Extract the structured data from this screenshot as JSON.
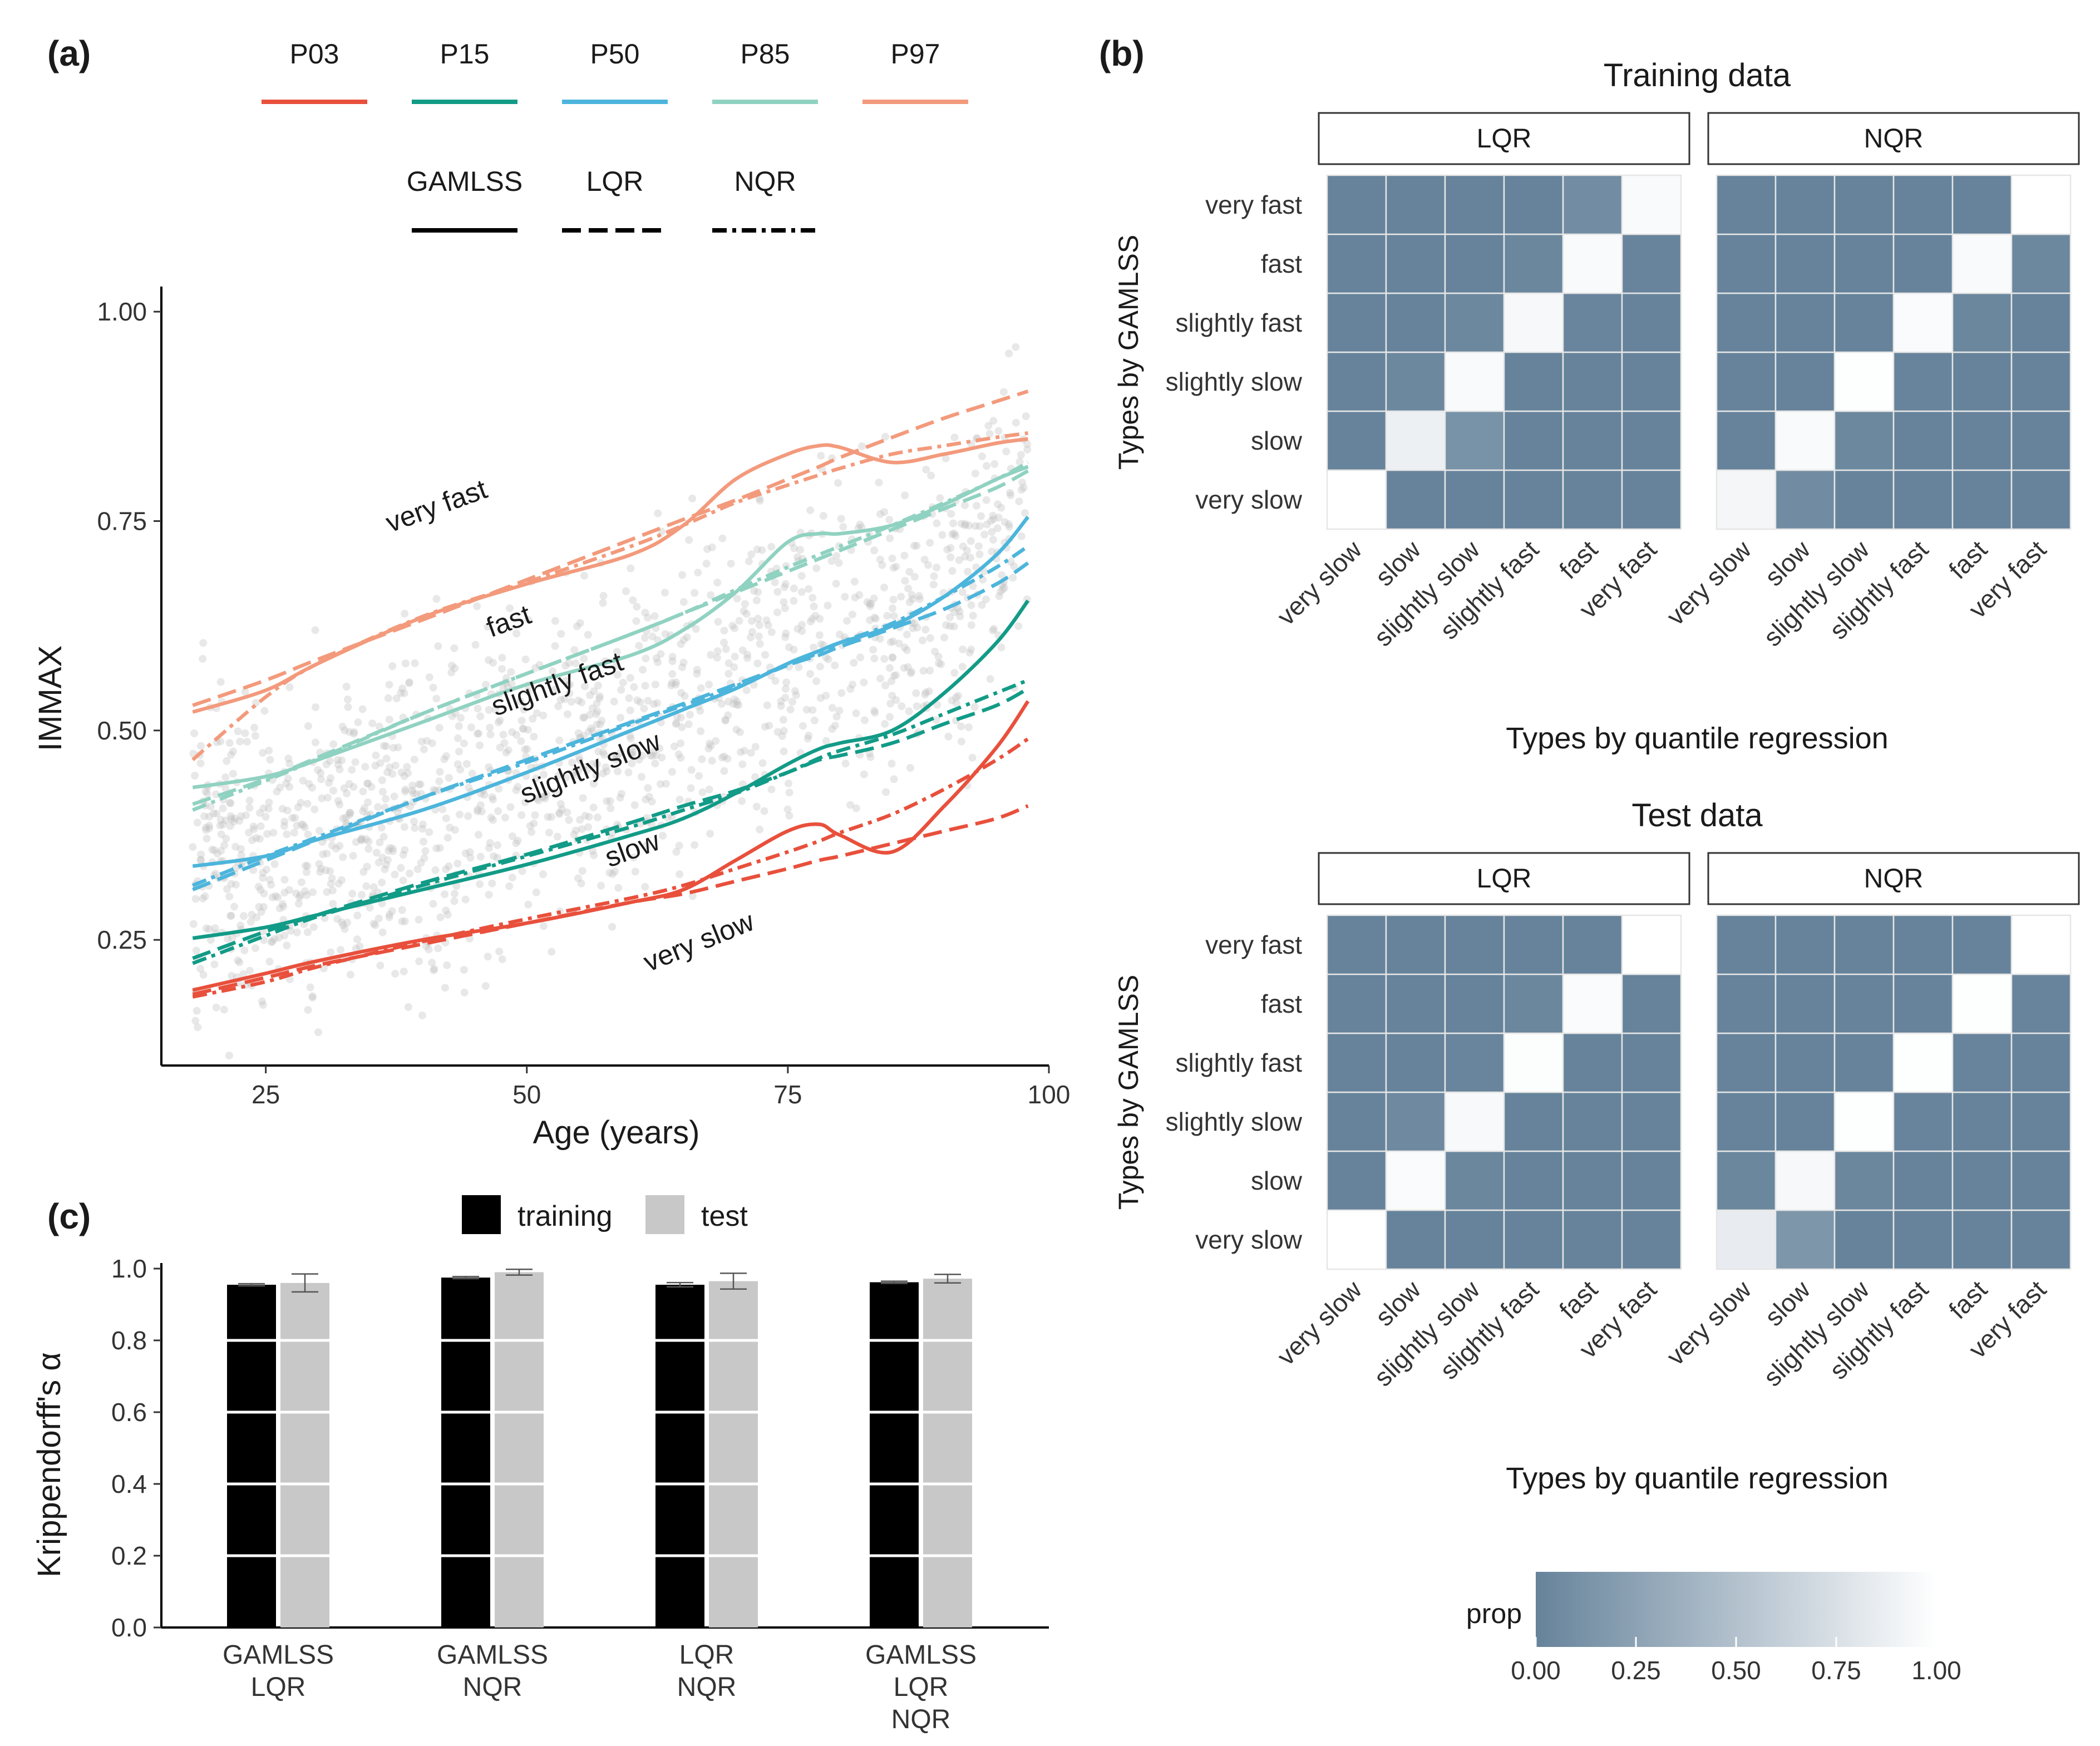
{
  "panel_labels": {
    "a": "(a)",
    "b": "(b)",
    "c": "(c)"
  },
  "colors": {
    "P03": "#e8503c",
    "P15": "#129b87",
    "P50": "#4cb5dc",
    "P85": "#90d2c1",
    "P97": "#f39a7c",
    "heat_low": "#66839b",
    "heat_high": "#ffffff",
    "bar_training": "#000000",
    "bar_test": "#c8c8c8",
    "points": "#bdbdbd"
  },
  "chart_data": [
    {
      "id": "a",
      "type": "line",
      "xlabel": "Age (years)",
      "ylabel": "IMMAX",
      "xlim": [
        15,
        100
      ],
      "ylim": [
        0.1,
        1.03
      ],
      "xticks": [
        25,
        50,
        75,
        100
      ],
      "yticks": [
        0.25,
        0.5,
        0.75,
        1.0
      ],
      "ytick_labels": [
        "0.25",
        "0.50",
        "0.75",
        "1.00"
      ],
      "grid": false,
      "legend": {
        "placement": "top",
        "percentiles": [
          "P03",
          "P15",
          "P50",
          "P85",
          "P97"
        ],
        "methods": [
          "GAMLSS",
          "LQR",
          "NQR"
        ]
      },
      "x": [
        18,
        25,
        30,
        40,
        50,
        60,
        65,
        70,
        75,
        78,
        80,
        85,
        90,
        95,
        98
      ],
      "series": [
        {
          "name": "P03",
          "method": "GAMLSS",
          "values": [
            0.19,
            0.21,
            0.225,
            0.25,
            0.27,
            0.295,
            0.31,
            0.345,
            0.38,
            0.388,
            0.375,
            0.355,
            0.41,
            0.48,
            0.535
          ]
        },
        {
          "name": "P03",
          "method": "LQR",
          "values": [
            0.185,
            0.205,
            0.22,
            0.245,
            0.27,
            0.295,
            0.305,
            0.32,
            0.335,
            0.345,
            0.35,
            0.365,
            0.38,
            0.395,
            0.41
          ]
        },
        {
          "name": "P03",
          "method": "NQR",
          "values": [
            0.182,
            0.2,
            0.218,
            0.248,
            0.275,
            0.3,
            0.315,
            0.335,
            0.355,
            0.368,
            0.378,
            0.4,
            0.43,
            0.465,
            0.49
          ]
        },
        {
          "name": "P15",
          "method": "GAMLSS",
          "values": [
            0.252,
            0.265,
            0.28,
            0.31,
            0.34,
            0.375,
            0.395,
            0.425,
            0.46,
            0.478,
            0.485,
            0.5,
            0.545,
            0.605,
            0.655
          ]
        },
        {
          "name": "P15",
          "method": "LQR",
          "values": [
            0.228,
            0.26,
            0.28,
            0.318,
            0.352,
            0.39,
            0.41,
            0.428,
            0.45,
            0.465,
            0.47,
            0.485,
            0.508,
            0.53,
            0.55
          ]
        },
        {
          "name": "P15",
          "method": "NQR",
          "values": [
            0.222,
            0.255,
            0.278,
            0.315,
            0.35,
            0.385,
            0.405,
            0.425,
            0.45,
            0.467,
            0.476,
            0.495,
            0.52,
            0.545,
            0.56
          ]
        },
        {
          "name": "P50",
          "method": "GAMLSS",
          "values": [
            0.338,
            0.35,
            0.37,
            0.405,
            0.45,
            0.5,
            0.525,
            0.55,
            0.58,
            0.595,
            0.605,
            0.625,
            0.66,
            0.71,
            0.755
          ]
        },
        {
          "name": "P50",
          "method": "LQR",
          "values": [
            0.31,
            0.345,
            0.37,
            0.42,
            0.465,
            0.51,
            0.532,
            0.555,
            0.578,
            0.59,
            0.6,
            0.622,
            0.645,
            0.675,
            0.7
          ]
        },
        {
          "name": "P50",
          "method": "NQR",
          "values": [
            0.315,
            0.35,
            0.373,
            0.42,
            0.462,
            0.508,
            0.53,
            0.553,
            0.578,
            0.593,
            0.605,
            0.628,
            0.66,
            0.695,
            0.72
          ]
        },
        {
          "name": "P85",
          "method": "GAMLSS",
          "values": [
            0.432,
            0.445,
            0.465,
            0.51,
            0.555,
            0.59,
            0.62,
            0.665,
            0.725,
            0.735,
            0.735,
            0.745,
            0.77,
            0.8,
            0.815
          ]
        },
        {
          "name": "P85",
          "method": "LQR",
          "values": [
            0.412,
            0.442,
            0.468,
            0.52,
            0.568,
            0.615,
            0.64,
            0.665,
            0.69,
            0.705,
            0.715,
            0.74,
            0.765,
            0.79,
            0.81
          ]
        },
        {
          "name": "P85",
          "method": "NQR",
          "values": [
            0.405,
            0.44,
            0.466,
            0.52,
            0.568,
            0.615,
            0.64,
            0.668,
            0.695,
            0.71,
            0.72,
            0.745,
            0.772,
            0.8,
            0.82
          ]
        },
        {
          "name": "P97",
          "method": "GAMLSS",
          "values": [
            0.522,
            0.548,
            0.58,
            0.635,
            0.675,
            0.71,
            0.745,
            0.8,
            0.83,
            0.84,
            0.838,
            0.82,
            0.83,
            0.843,
            0.848
          ]
        },
        {
          "name": "P97",
          "method": "LQR",
          "values": [
            0.53,
            0.56,
            0.585,
            0.632,
            0.68,
            0.728,
            0.752,
            0.775,
            0.8,
            0.815,
            0.826,
            0.85,
            0.873,
            0.893,
            0.905
          ]
        },
        {
          "name": "P97",
          "method": "NQR",
          "values": [
            0.465,
            0.54,
            0.58,
            0.636,
            0.677,
            0.72,
            0.745,
            0.772,
            0.793,
            0.805,
            0.813,
            0.83,
            0.84,
            0.85,
            0.855
          ]
        }
      ],
      "annotations": [
        "very fast",
        "fast",
        "slightly fast",
        "slightly slow",
        "slow",
        "very slow"
      ]
    },
    {
      "id": "b",
      "type": "heatmap",
      "ylabel": "Types by GAMLSS",
      "xlabel": "Types by quantile regression",
      "categories": [
        "very slow",
        "slow",
        "slightly slow",
        "slightly fast",
        "fast",
        "very fast"
      ],
      "legend": {
        "title": "prop",
        "ticks": [
          "0.00",
          "0.25",
          "0.50",
          "0.75",
          "1.00"
        ],
        "placement": "bottom"
      },
      "panels": [
        {
          "title": "Training data",
          "facet": "LQR",
          "matrix": [
            [
              1.0,
              0.0,
              0.0,
              0.0,
              0.0,
              0.0
            ],
            [
              0.0,
              0.88,
              0.12,
              0.0,
              0.0,
              0.0
            ],
            [
              0.0,
              0.04,
              0.96,
              0.0,
              0.0,
              0.0
            ],
            [
              0.0,
              0.0,
              0.04,
              0.94,
              0.02,
              0.0
            ],
            [
              0.0,
              0.0,
              0.0,
              0.03,
              0.96,
              0.01
            ],
            [
              0.0,
              0.0,
              0.0,
              0.0,
              0.08,
              0.96
            ]
          ]
        },
        {
          "title": "Training data",
          "facet": "NQR",
          "matrix": [
            [
              0.93,
              0.07,
              0.0,
              0.0,
              0.0,
              0.0
            ],
            [
              0.0,
              0.96,
              0.04,
              0.0,
              0.0,
              0.0
            ],
            [
              0.0,
              0.0,
              0.99,
              0.01,
              0.0,
              0.0
            ],
            [
              0.0,
              0.0,
              0.0,
              0.97,
              0.03,
              0.0
            ],
            [
              0.0,
              0.0,
              0.0,
              0.0,
              0.96,
              0.04
            ],
            [
              0.0,
              0.0,
              0.0,
              0.0,
              0.0,
              1.0
            ]
          ]
        },
        {
          "title": "Test data",
          "facet": "LQR",
          "matrix": [
            [
              1.0,
              0.0,
              0.0,
              0.0,
              0.0,
              0.0
            ],
            [
              0.0,
              0.97,
              0.03,
              0.0,
              0.0,
              0.0
            ],
            [
              0.0,
              0.05,
              0.95,
              0.0,
              0.0,
              0.0
            ],
            [
              0.0,
              0.0,
              0.02,
              0.98,
              0.0,
              0.0
            ],
            [
              0.0,
              0.0,
              0.0,
              0.03,
              0.97,
              0.0
            ],
            [
              0.0,
              0.0,
              0.0,
              0.0,
              0.0,
              1.0
            ]
          ]
        },
        {
          "title": "Test data",
          "facet": "NQR",
          "matrix": [
            [
              0.85,
              0.15,
              0.0,
              0.0,
              0.0,
              0.0
            ],
            [
              0.03,
              0.94,
              0.03,
              0.0,
              0.0,
              0.0
            ],
            [
              0.0,
              0.0,
              0.99,
              0.01,
              0.0,
              0.0
            ],
            [
              0.0,
              0.0,
              0.0,
              0.99,
              0.01,
              0.0
            ],
            [
              0.0,
              0.0,
              0.0,
              0.0,
              0.99,
              0.01
            ],
            [
              0.0,
              0.0,
              0.0,
              0.0,
              0.0,
              1.0
            ]
          ]
        }
      ]
    },
    {
      "id": "c",
      "type": "bar",
      "ylabel": "Krippendorff's α",
      "ylim": [
        0,
        1
      ],
      "yticks": [
        "0.0",
        "0.2",
        "0.4",
        "0.6",
        "0.8",
        "1.0"
      ],
      "grid": false,
      "legend": {
        "placement": "top"
      },
      "categories": [
        "GAMLSS\nLQR",
        "GAMLSS\nNQR",
        "LQR\nNQR",
        "GAMLSS\nLQR\nNQR"
      ],
      "series": [
        {
          "name": "training",
          "values": [
            0.955,
            0.975,
            0.955,
            0.962
          ],
          "err": [
            0.003,
            0.003,
            0.006,
            0.003
          ]
        },
        {
          "name": "test",
          "values": [
            0.96,
            0.99,
            0.965,
            0.972
          ],
          "err": [
            0.025,
            0.008,
            0.022,
            0.012
          ]
        }
      ]
    }
  ]
}
